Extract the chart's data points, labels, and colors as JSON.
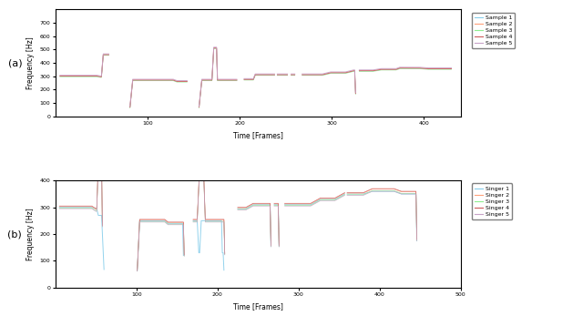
{
  "subplot_a": {
    "ylabel": "Frequency [Hz]",
    "xlabel": "Time [Frames]",
    "ylim": [
      0,
      800
    ],
    "xlim": [
      0,
      440
    ],
    "yticks": [
      0,
      100,
      200,
      300,
      400,
      500,
      600,
      700
    ],
    "xticks": [
      100,
      200,
      300,
      400
    ],
    "legend_labels": [
      "Sample 1",
      "Sample 2",
      "Sample 3",
      "Sample 4",
      "Sample 5"
    ],
    "colors": [
      "#87CEEB",
      "#FFA07A",
      "#90EE90",
      "#CD5C5C",
      "#C8A2C8"
    ]
  },
  "subplot_b": {
    "ylabel": "Frequency [Hz]",
    "xlabel": "Time [Frames]",
    "ylim": [
      0,
      400
    ],
    "xlim": [
      0,
      500
    ],
    "yticks": [
      0,
      100,
      200,
      300,
      400
    ],
    "xticks": [
      100,
      200,
      300,
      400,
      500
    ],
    "legend_labels": [
      "Singer 1",
      "Singer 2",
      "Singer 3",
      "Singer 4",
      "Singer 5"
    ],
    "colors": [
      "#87CEEB",
      "#FFA07A",
      "#90EE90",
      "#CD5C5C",
      "#C8A2C8"
    ]
  }
}
